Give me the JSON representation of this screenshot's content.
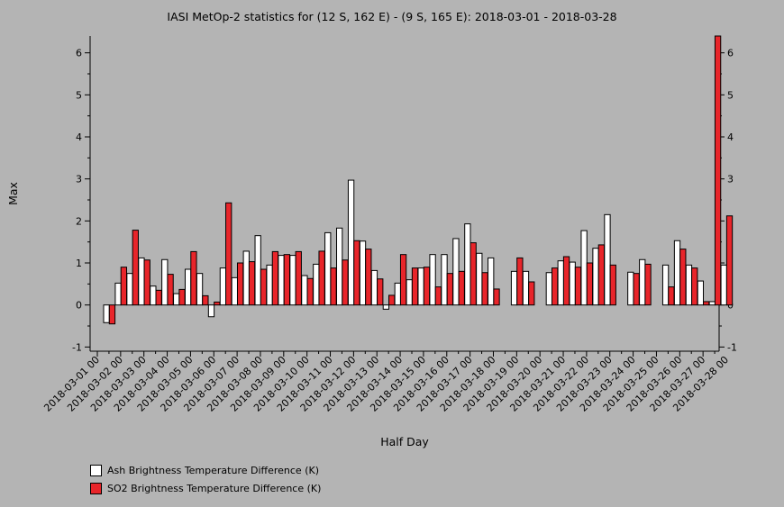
{
  "chart_data": {
    "type": "bar",
    "title": "IASI MetOp-2 statistics for (12 S, 162 E) - (9 S, 165 E): 2018-03-01 - 2018-03-28",
    "xlabel": "Half Day",
    "ylabel": "Max",
    "ylim": [
      -1.1,
      6.4
    ],
    "yticks": [
      -1,
      0,
      1,
      2,
      3,
      4,
      5,
      6
    ],
    "grid": false,
    "legend_position": "bottom-left",
    "categories": [
      "2018-03-01 00",
      "2018-03-01 12",
      "2018-03-02 00",
      "2018-03-02 12",
      "2018-03-03 00",
      "2018-03-03 12",
      "2018-03-04 00",
      "2018-03-04 12",
      "2018-03-05 00",
      "2018-03-05 12",
      "2018-03-06 00",
      "2018-03-06 12",
      "2018-03-07 00",
      "2018-03-07 12",
      "2018-03-08 00",
      "2018-03-08 12",
      "2018-03-09 00",
      "2018-03-09 12",
      "2018-03-10 00",
      "2018-03-10 12",
      "2018-03-11 00",
      "2018-03-11 12",
      "2018-03-12 00",
      "2018-03-12 12",
      "2018-03-13 00",
      "2018-03-13 12",
      "2018-03-14 00",
      "2018-03-14 12",
      "2018-03-15 00",
      "2018-03-15 12",
      "2018-03-16 00",
      "2018-03-16 12",
      "2018-03-17 00",
      "2018-03-17 12",
      "2018-03-18 00",
      "2018-03-18 12",
      "2018-03-19 00",
      "2018-03-19 12",
      "2018-03-20 00",
      "2018-03-20 12",
      "2018-03-21 00",
      "2018-03-21 12",
      "2018-03-22 00",
      "2018-03-22 12",
      "2018-03-23 00",
      "2018-03-23 12",
      "2018-03-24 00",
      "2018-03-24 12",
      "2018-03-25 00",
      "2018-03-25 12",
      "2018-03-26 00",
      "2018-03-26 12",
      "2018-03-27 00",
      "2018-03-27 12"
    ],
    "tick_labels": [
      "2018-03-01 00",
      "2018-03-02 00",
      "2018-03-03 00",
      "2018-03-04 00",
      "2018-03-05 00",
      "2018-03-06 00",
      "2018-03-07 00",
      "2018-03-08 00",
      "2018-03-09 00",
      "2018-03-10 00",
      "2018-03-11 00",
      "2018-03-12 00",
      "2018-03-13 00",
      "2018-03-14 00",
      "2018-03-15 00",
      "2018-03-16 00",
      "2018-03-17 00",
      "2018-03-18 00",
      "2018-03-19 00",
      "2018-03-20 00",
      "2018-03-21 00",
      "2018-03-22 00",
      "2018-03-23 00",
      "2018-03-24 00",
      "2018-03-25 00",
      "2018-03-26 00",
      "2018-03-27 00",
      "2018-03-28 00"
    ],
    "series": [
      {
        "name": "Ash Brightness Temperature Difference (K)",
        "color": "#ffffff",
        "values": [
          -0.42,
          0.52,
          0.75,
          1.12,
          0.45,
          1.08,
          0.27,
          0.85,
          0.75,
          -0.28,
          0.88,
          0.65,
          1.28,
          1.65,
          0.95,
          1.18,
          1.18,
          0.7,
          0.97,
          1.72,
          1.83,
          2.97,
          1.52,
          0.82,
          -0.1,
          0.52,
          0.6,
          0.88,
          1.2,
          1.2,
          1.58,
          1.93,
          1.23,
          1.12,
          null,
          0.8,
          0.8,
          null,
          0.77,
          1.05,
          1.02,
          1.77,
          1.35,
          2.15,
          null,
          0.78,
          1.08,
          null,
          0.95,
          1.53,
          0.95,
          0.57,
          0.08,
          0.95
        ]
      },
      {
        "name": "SO2 Brightness Temperature Difference (K)",
        "color": "#e8252a",
        "values": [
          -0.45,
          0.9,
          1.78,
          1.07,
          0.35,
          0.73,
          0.37,
          1.27,
          0.22,
          0.07,
          2.43,
          1.0,
          1.03,
          0.85,
          1.27,
          1.2,
          1.27,
          0.63,
          1.28,
          0.88,
          1.07,
          1.53,
          1.33,
          0.62,
          0.23,
          1.2,
          0.88,
          0.9,
          0.43,
          0.75,
          0.8,
          1.48,
          0.77,
          0.38,
          null,
          1.12,
          0.55,
          null,
          0.88,
          1.15,
          0.9,
          1.0,
          1.43,
          0.95,
          null,
          0.75,
          0.97,
          null,
          0.43,
          1.33,
          0.88,
          0.08,
          6.4,
          2.12
        ]
      }
    ]
  }
}
